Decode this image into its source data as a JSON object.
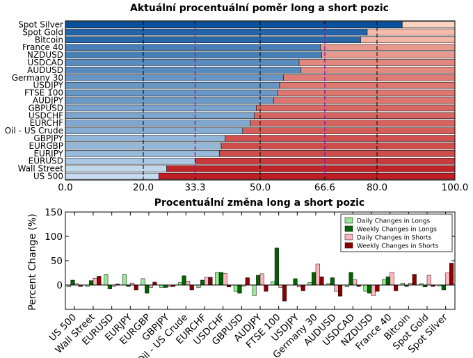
{
  "chart_data": [
    {
      "type": "bar",
      "orientation": "horizontal",
      "stacked": true,
      "title": "Aktuální procentuální poměr long a short pozic",
      "categories": [
        "Spot Silver",
        "Spot Gold",
        "Bitcoin",
        "France 40",
        "NZDUSD",
        "USDCAD",
        "AUDUSD",
        "Germany 30",
        "USDJPY",
        "FTSE 100",
        "AUDJPY",
        "GBPUSD",
        "USDCHF",
        "EURCHF",
        "Oil - US Crude",
        "GBPJPY",
        "EURGBP",
        "EURJPY",
        "EURUSD",
        "Wall Street",
        "US 500"
      ],
      "series": [
        {
          "values": [
            86.5,
            77.5,
            75.8,
            65.5,
            65.8,
            60.0,
            60.5,
            56.0,
            55.0,
            54.5,
            53.5,
            49.0,
            48.5,
            47.5,
            45.5,
            41.0,
            40.0,
            39.5,
            33.5,
            26.0,
            24.0
          ]
        },
        {
          "values": [
            13.5,
            22.5,
            24.2,
            34.5,
            34.2,
            40.0,
            39.5,
            44.0,
            45.0,
            45.5,
            46.5,
            51.0,
            51.5,
            52.5,
            54.5,
            59.0,
            60.0,
            60.5,
            66.5,
            74.0,
            76.0
          ]
        }
      ],
      "xlim": [
        0,
        100
      ],
      "xticks": [
        "0.0",
        "20.0",
        "33.3",
        "50.0",
        "66.6",
        "80.0",
        "100.0"
      ],
      "highlight_ticks": [
        "33.3",
        "66.6"
      ],
      "colors": {
        "long_light": "#c6dbef",
        "long_dark": "#08519c",
        "short_light": "#fdd5c2",
        "short_dark": "#bf1f24",
        "highlight_tick": "#7a1ea1"
      }
    },
    {
      "type": "bar",
      "title": "Procentuální změna long a short pozic",
      "ylabel": "Percent Change (%)",
      "ylim": [
        -50,
        150
      ],
      "yticks": [
        "0",
        "50",
        "100",
        "150"
      ],
      "categories": [
        "US 500",
        "Wall Street",
        "EURUSD",
        "EURJPY",
        "EURGBP",
        "GBPJPY",
        "Oil - US Crude",
        "EURCHF",
        "USDCHF",
        "GBPUSD",
        "AUDJPY",
        "FTSE 100",
        "USDJPY",
        "Germany 30",
        "AUDUSD",
        "USDCAD",
        "NZDUSD",
        "France 40",
        "Bitcoin",
        "Spot Gold",
        "Spot Silver"
      ],
      "legend_position": "upper right",
      "series": [
        {
          "name": "Daily Changes in Longs",
          "color": "#98e898",
          "values": [
            -4,
            -3,
            22,
            22,
            13,
            -5,
            5,
            -5,
            26,
            -13,
            -22,
            7,
            0,
            5,
            3,
            -4,
            -13,
            12,
            4,
            3,
            -2
          ]
        },
        {
          "name": "Weekly Changes in Longs",
          "color": "#006400",
          "values": [
            10,
            9,
            -8,
            -3,
            -17,
            -5,
            19,
            10,
            26,
            -17,
            20,
            76,
            13,
            26,
            15,
            26,
            -17,
            17,
            -3,
            -4,
            -10
          ]
        },
        {
          "name": "Daily Changes in Shorts",
          "color": "#ffb6c1",
          "values": [
            3,
            14,
            -3,
            4,
            -5,
            -4,
            8,
            16,
            24,
            -3,
            23,
            -5,
            -4,
            43,
            -13,
            11,
            -22,
            26,
            4,
            20,
            25
          ]
        },
        {
          "name": "Weekly Changes in Shorts",
          "color": "#8b0000",
          "values": [
            -3,
            18,
            2,
            -10,
            6,
            -3,
            -10,
            16,
            -4,
            15,
            -13,
            -33,
            -12,
            17,
            -23,
            -3,
            -13,
            -12,
            22,
            -3,
            45
          ]
        }
      ]
    }
  ]
}
